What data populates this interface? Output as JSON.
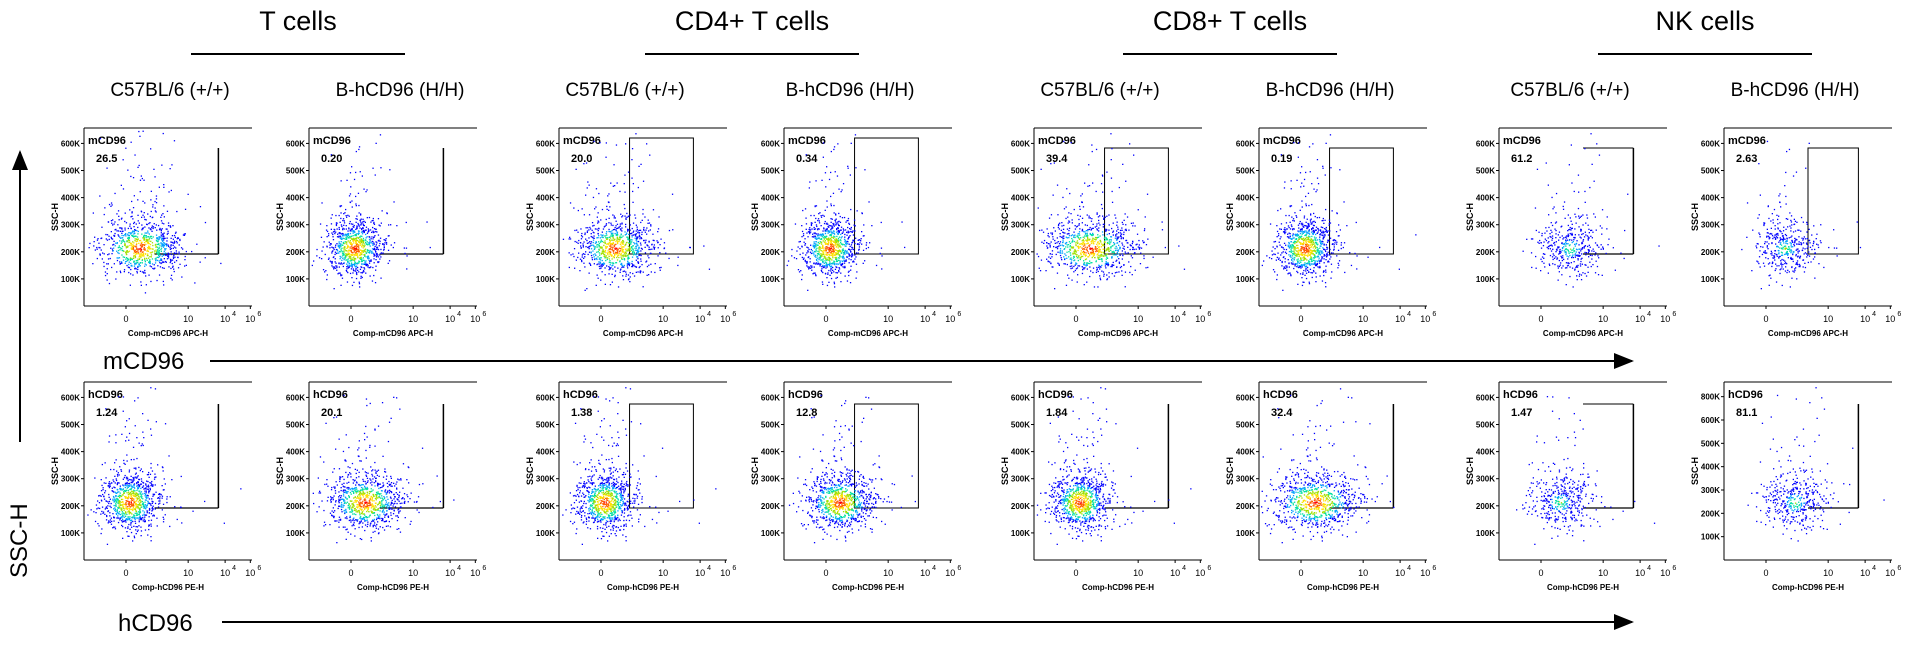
{
  "figure": {
    "groups": [
      {
        "title": "T cells",
        "strains": [
          "C57BL/6 (+/+)",
          "B-hCD96 (H/H)"
        ]
      },
      {
        "title": "CD4+ T cells",
        "strains": [
          "C57BL/6 (+/+)",
          "B-hCD96 (H/H)"
        ]
      },
      {
        "title": "CD8+ T cells",
        "strains": [
          "C57BL/6 (+/+)",
          "B-hCD96 (H/H)"
        ]
      },
      {
        "title": "NK cells",
        "strains": [
          "C57BL/6 (+/+)",
          "B-hCD96 (H/H)"
        ]
      }
    ],
    "row_labels": [
      "mCD96",
      "hCD96"
    ],
    "y_axis_label": "SSC-H",
    "panel_y_label": "SSC-H",
    "panel_x_labels": {
      "mCD96": "Comp-mCD96 APC-H",
      "hCD96": "Comp-hCD96 PE-H"
    }
  },
  "chart_data": {
    "type": "scatter",
    "subtype": "flow-cytometry-density",
    "y_ticks": [
      "100K",
      "200K",
      "300K",
      "400K",
      "500K",
      "600K"
    ],
    "y_ticks_nk_hcd96": [
      "100K",
      "200K",
      "300K",
      "400K",
      "500K",
      "600K",
      "800K"
    ],
    "x_ticks": [
      "0",
      "10",
      "10",
      "10"
    ],
    "x_tick_exponents": [
      "",
      "",
      "4",
      "6"
    ],
    "panels": [
      {
        "row": "mCD96",
        "group": "T cells",
        "strain": "C57BL/6 (+/+)",
        "gate": "mCD96",
        "percent": "26.5"
      },
      {
        "row": "mCD96",
        "group": "T cells",
        "strain": "B-hCD96 (H/H)",
        "gate": "mCD96",
        "percent": "0.20"
      },
      {
        "row": "mCD96",
        "group": "CD4+ T cells",
        "strain": "C57BL/6 (+/+)",
        "gate": "mCD96",
        "percent": "20.0"
      },
      {
        "row": "mCD96",
        "group": "CD4+ T cells",
        "strain": "B-hCD96 (H/H)",
        "gate": "mCD96",
        "percent": "0.34"
      },
      {
        "row": "mCD96",
        "group": "CD8+ T cells",
        "strain": "C57BL/6 (+/+)",
        "gate": "mCD96",
        "percent": "39.4"
      },
      {
        "row": "mCD96",
        "group": "CD8+ T cells",
        "strain": "B-hCD96 (H/H)",
        "gate": "mCD96",
        "percent": "0.19"
      },
      {
        "row": "mCD96",
        "group": "NK cells",
        "strain": "C57BL/6 (+/+)",
        "gate": "mCD96",
        "percent": "61.2"
      },
      {
        "row": "mCD96",
        "group": "NK cells",
        "strain": "B-hCD96 (H/H)",
        "gate": "mCD96",
        "percent": "2.63"
      },
      {
        "row": "hCD96",
        "group": "T cells",
        "strain": "C57BL/6 (+/+)",
        "gate": "hCD96",
        "percent": "1.24"
      },
      {
        "row": "hCD96",
        "group": "T cells",
        "strain": "B-hCD96 (H/H)",
        "gate": "hCD96",
        "percent": "20.1"
      },
      {
        "row": "hCD96",
        "group": "CD4+ T cells",
        "strain": "C57BL/6 (+/+)",
        "gate": "hCD96",
        "percent": "1.38"
      },
      {
        "row": "hCD96",
        "group": "CD4+ T cells",
        "strain": "B-hCD96 (H/H)",
        "gate": "hCD96",
        "percent": "12.8"
      },
      {
        "row": "hCD96",
        "group": "CD8+ T cells",
        "strain": "C57BL/6 (+/+)",
        "gate": "hCD96",
        "percent": "1.84"
      },
      {
        "row": "hCD96",
        "group": "CD8+ T cells",
        "strain": "B-hCD96 (H/H)",
        "gate": "hCD96",
        "percent": "32.4"
      },
      {
        "row": "hCD96",
        "group": "NK cells",
        "strain": "C57BL/6 (+/+)",
        "gate": "hCD96",
        "percent": "1.47"
      },
      {
        "row": "hCD96",
        "group": "NK cells",
        "strain": "B-hCD96 (H/H)",
        "gate": "hCD96",
        "percent": "81.1"
      }
    ]
  }
}
